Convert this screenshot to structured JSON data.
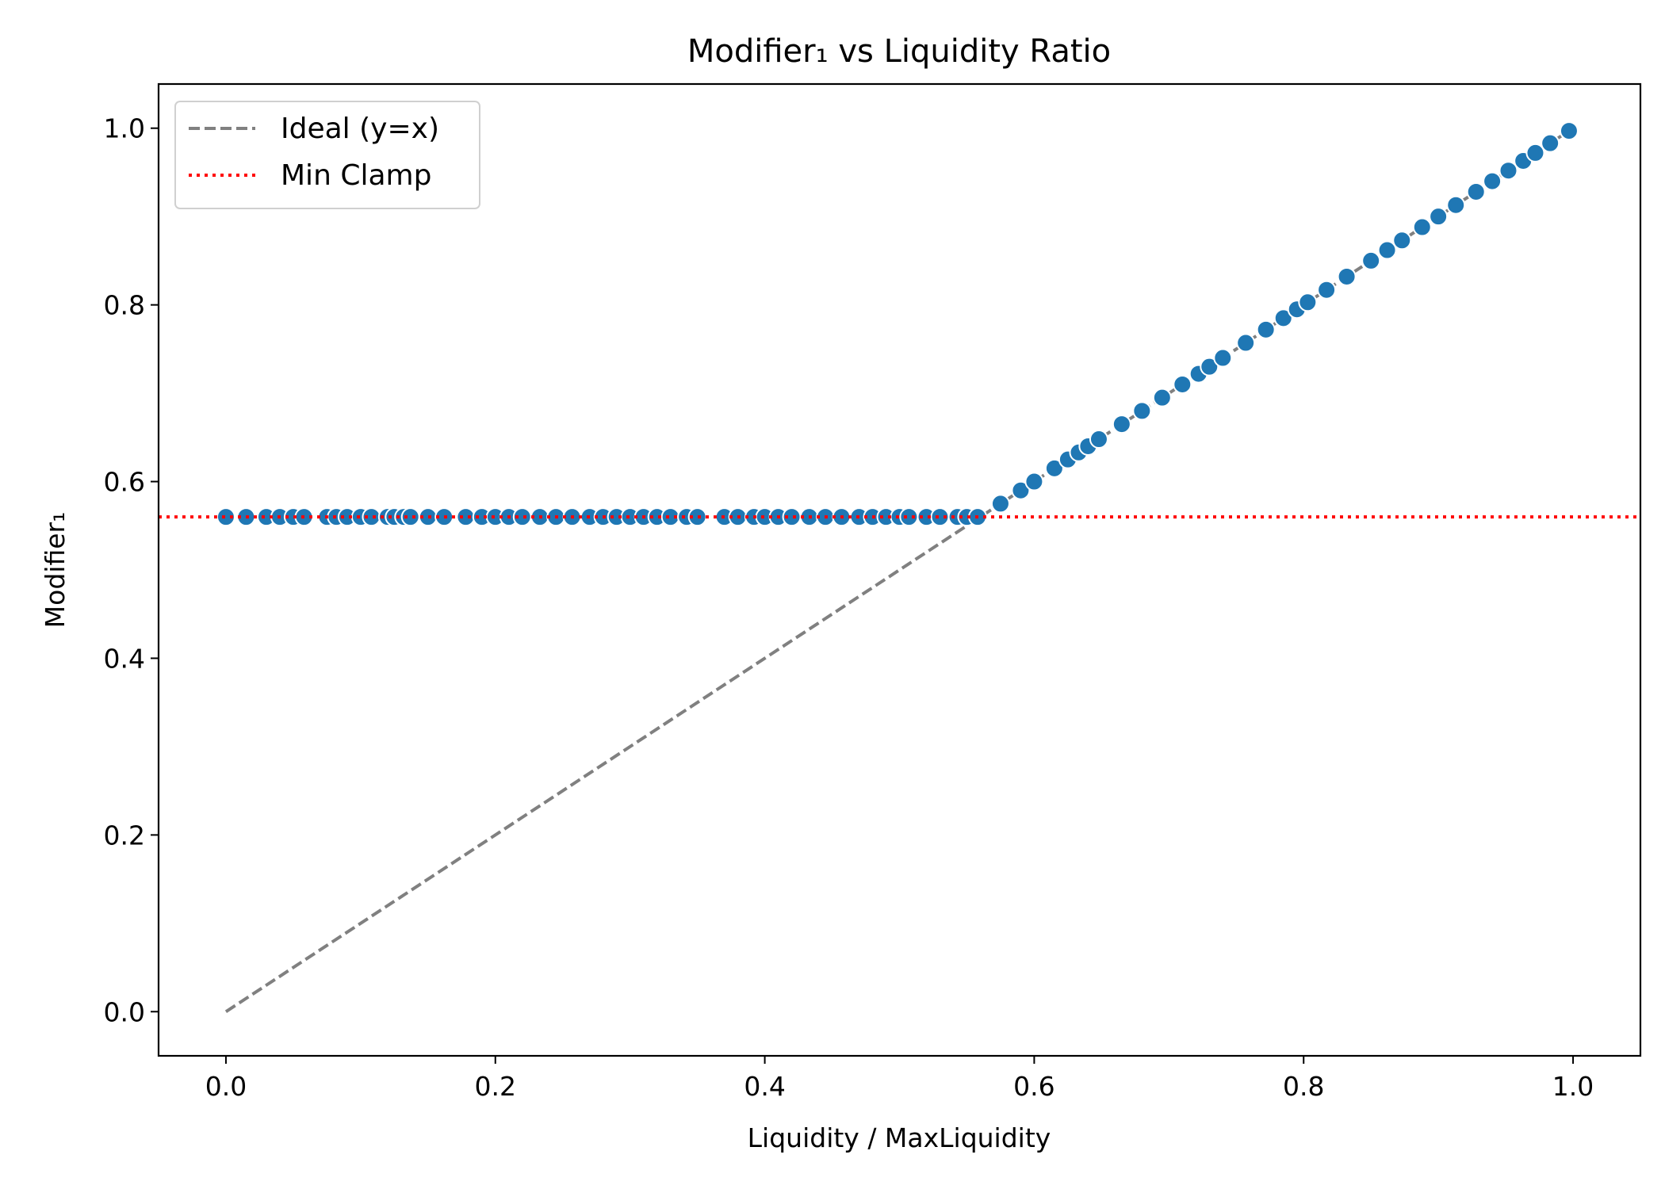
{
  "chart_data": {
    "type": "scatter",
    "title": "Modifier₁ vs Liquidity Ratio",
    "xlabel": "Liquidity / MaxLiquidity",
    "ylabel": "Modifier₁",
    "xlim": [
      -0.05,
      1.05
    ],
    "ylim": [
      -0.05,
      1.05
    ],
    "x_ticks": [
      "0.0",
      "0.2",
      "0.4",
      "0.6",
      "0.8",
      "1.0"
    ],
    "y_ticks": [
      "0.0",
      "0.2",
      "0.4",
      "0.6",
      "0.8",
      "1.0"
    ],
    "grid": false,
    "legend": {
      "placement": "upper-left",
      "entries": [
        {
          "label": "Ideal (y=x)",
          "style": "dashed",
          "color": "#808080"
        },
        {
          "label": "Min Clamp",
          "style": "dotted",
          "color": "#ff0000"
        }
      ]
    },
    "reference_lines": {
      "ideal": {
        "from": [
          0,
          0
        ],
        "to": [
          1,
          1
        ],
        "color": "#808080"
      },
      "min_clamp": {
        "y": 0.56,
        "color": "#ff0000"
      }
    },
    "series": [
      {
        "color": "#1f77b4",
        "points": [
          [
            0.0,
            0.56
          ],
          [
            0.015,
            0.56
          ],
          [
            0.03,
            0.56
          ],
          [
            0.04,
            0.56
          ],
          [
            0.05,
            0.56
          ],
          [
            0.058,
            0.56
          ],
          [
            0.075,
            0.56
          ],
          [
            0.082,
            0.56
          ],
          [
            0.09,
            0.56
          ],
          [
            0.1,
            0.56
          ],
          [
            0.108,
            0.56
          ],
          [
            0.12,
            0.56
          ],
          [
            0.125,
            0.56
          ],
          [
            0.132,
            0.56
          ],
          [
            0.137,
            0.56
          ],
          [
            0.15,
            0.56
          ],
          [
            0.162,
            0.56
          ],
          [
            0.178,
            0.56
          ],
          [
            0.19,
            0.56
          ],
          [
            0.2,
            0.56
          ],
          [
            0.21,
            0.56
          ],
          [
            0.22,
            0.56
          ],
          [
            0.233,
            0.56
          ],
          [
            0.245,
            0.56
          ],
          [
            0.257,
            0.56
          ],
          [
            0.27,
            0.56
          ],
          [
            0.28,
            0.56
          ],
          [
            0.29,
            0.56
          ],
          [
            0.3,
            0.56
          ],
          [
            0.31,
            0.56
          ],
          [
            0.32,
            0.56
          ],
          [
            0.33,
            0.56
          ],
          [
            0.342,
            0.56
          ],
          [
            0.35,
            0.56
          ],
          [
            0.37,
            0.56
          ],
          [
            0.38,
            0.56
          ],
          [
            0.392,
            0.56
          ],
          [
            0.4,
            0.56
          ],
          [
            0.41,
            0.56
          ],
          [
            0.42,
            0.56
          ],
          [
            0.433,
            0.56
          ],
          [
            0.445,
            0.56
          ],
          [
            0.457,
            0.56
          ],
          [
            0.47,
            0.56
          ],
          [
            0.48,
            0.56
          ],
          [
            0.49,
            0.56
          ],
          [
            0.5,
            0.56
          ],
          [
            0.507,
            0.56
          ],
          [
            0.52,
            0.56
          ],
          [
            0.53,
            0.56
          ],
          [
            0.543,
            0.56
          ],
          [
            0.55,
            0.56
          ],
          [
            0.558,
            0.56
          ],
          [
            0.575,
            0.575
          ],
          [
            0.59,
            0.59
          ],
          [
            0.6,
            0.6
          ],
          [
            0.615,
            0.615
          ],
          [
            0.625,
            0.625
          ],
          [
            0.633,
            0.633
          ],
          [
            0.64,
            0.64
          ],
          [
            0.648,
            0.648
          ],
          [
            0.665,
            0.665
          ],
          [
            0.68,
            0.68
          ],
          [
            0.695,
            0.695
          ],
          [
            0.71,
            0.71
          ],
          [
            0.722,
            0.722
          ],
          [
            0.73,
            0.73
          ],
          [
            0.74,
            0.74
          ],
          [
            0.757,
            0.757
          ],
          [
            0.772,
            0.772
          ],
          [
            0.785,
            0.785
          ],
          [
            0.795,
            0.795
          ],
          [
            0.803,
            0.803
          ],
          [
            0.817,
            0.817
          ],
          [
            0.832,
            0.832
          ],
          [
            0.85,
            0.85
          ],
          [
            0.862,
            0.862
          ],
          [
            0.873,
            0.873
          ],
          [
            0.888,
            0.888
          ],
          [
            0.9,
            0.9
          ],
          [
            0.913,
            0.913
          ],
          [
            0.928,
            0.928
          ],
          [
            0.94,
            0.94
          ],
          [
            0.952,
            0.952
          ],
          [
            0.963,
            0.963
          ],
          [
            0.972,
            0.972
          ],
          [
            0.983,
            0.983
          ],
          [
            0.997,
            0.997
          ]
        ]
      }
    ]
  }
}
